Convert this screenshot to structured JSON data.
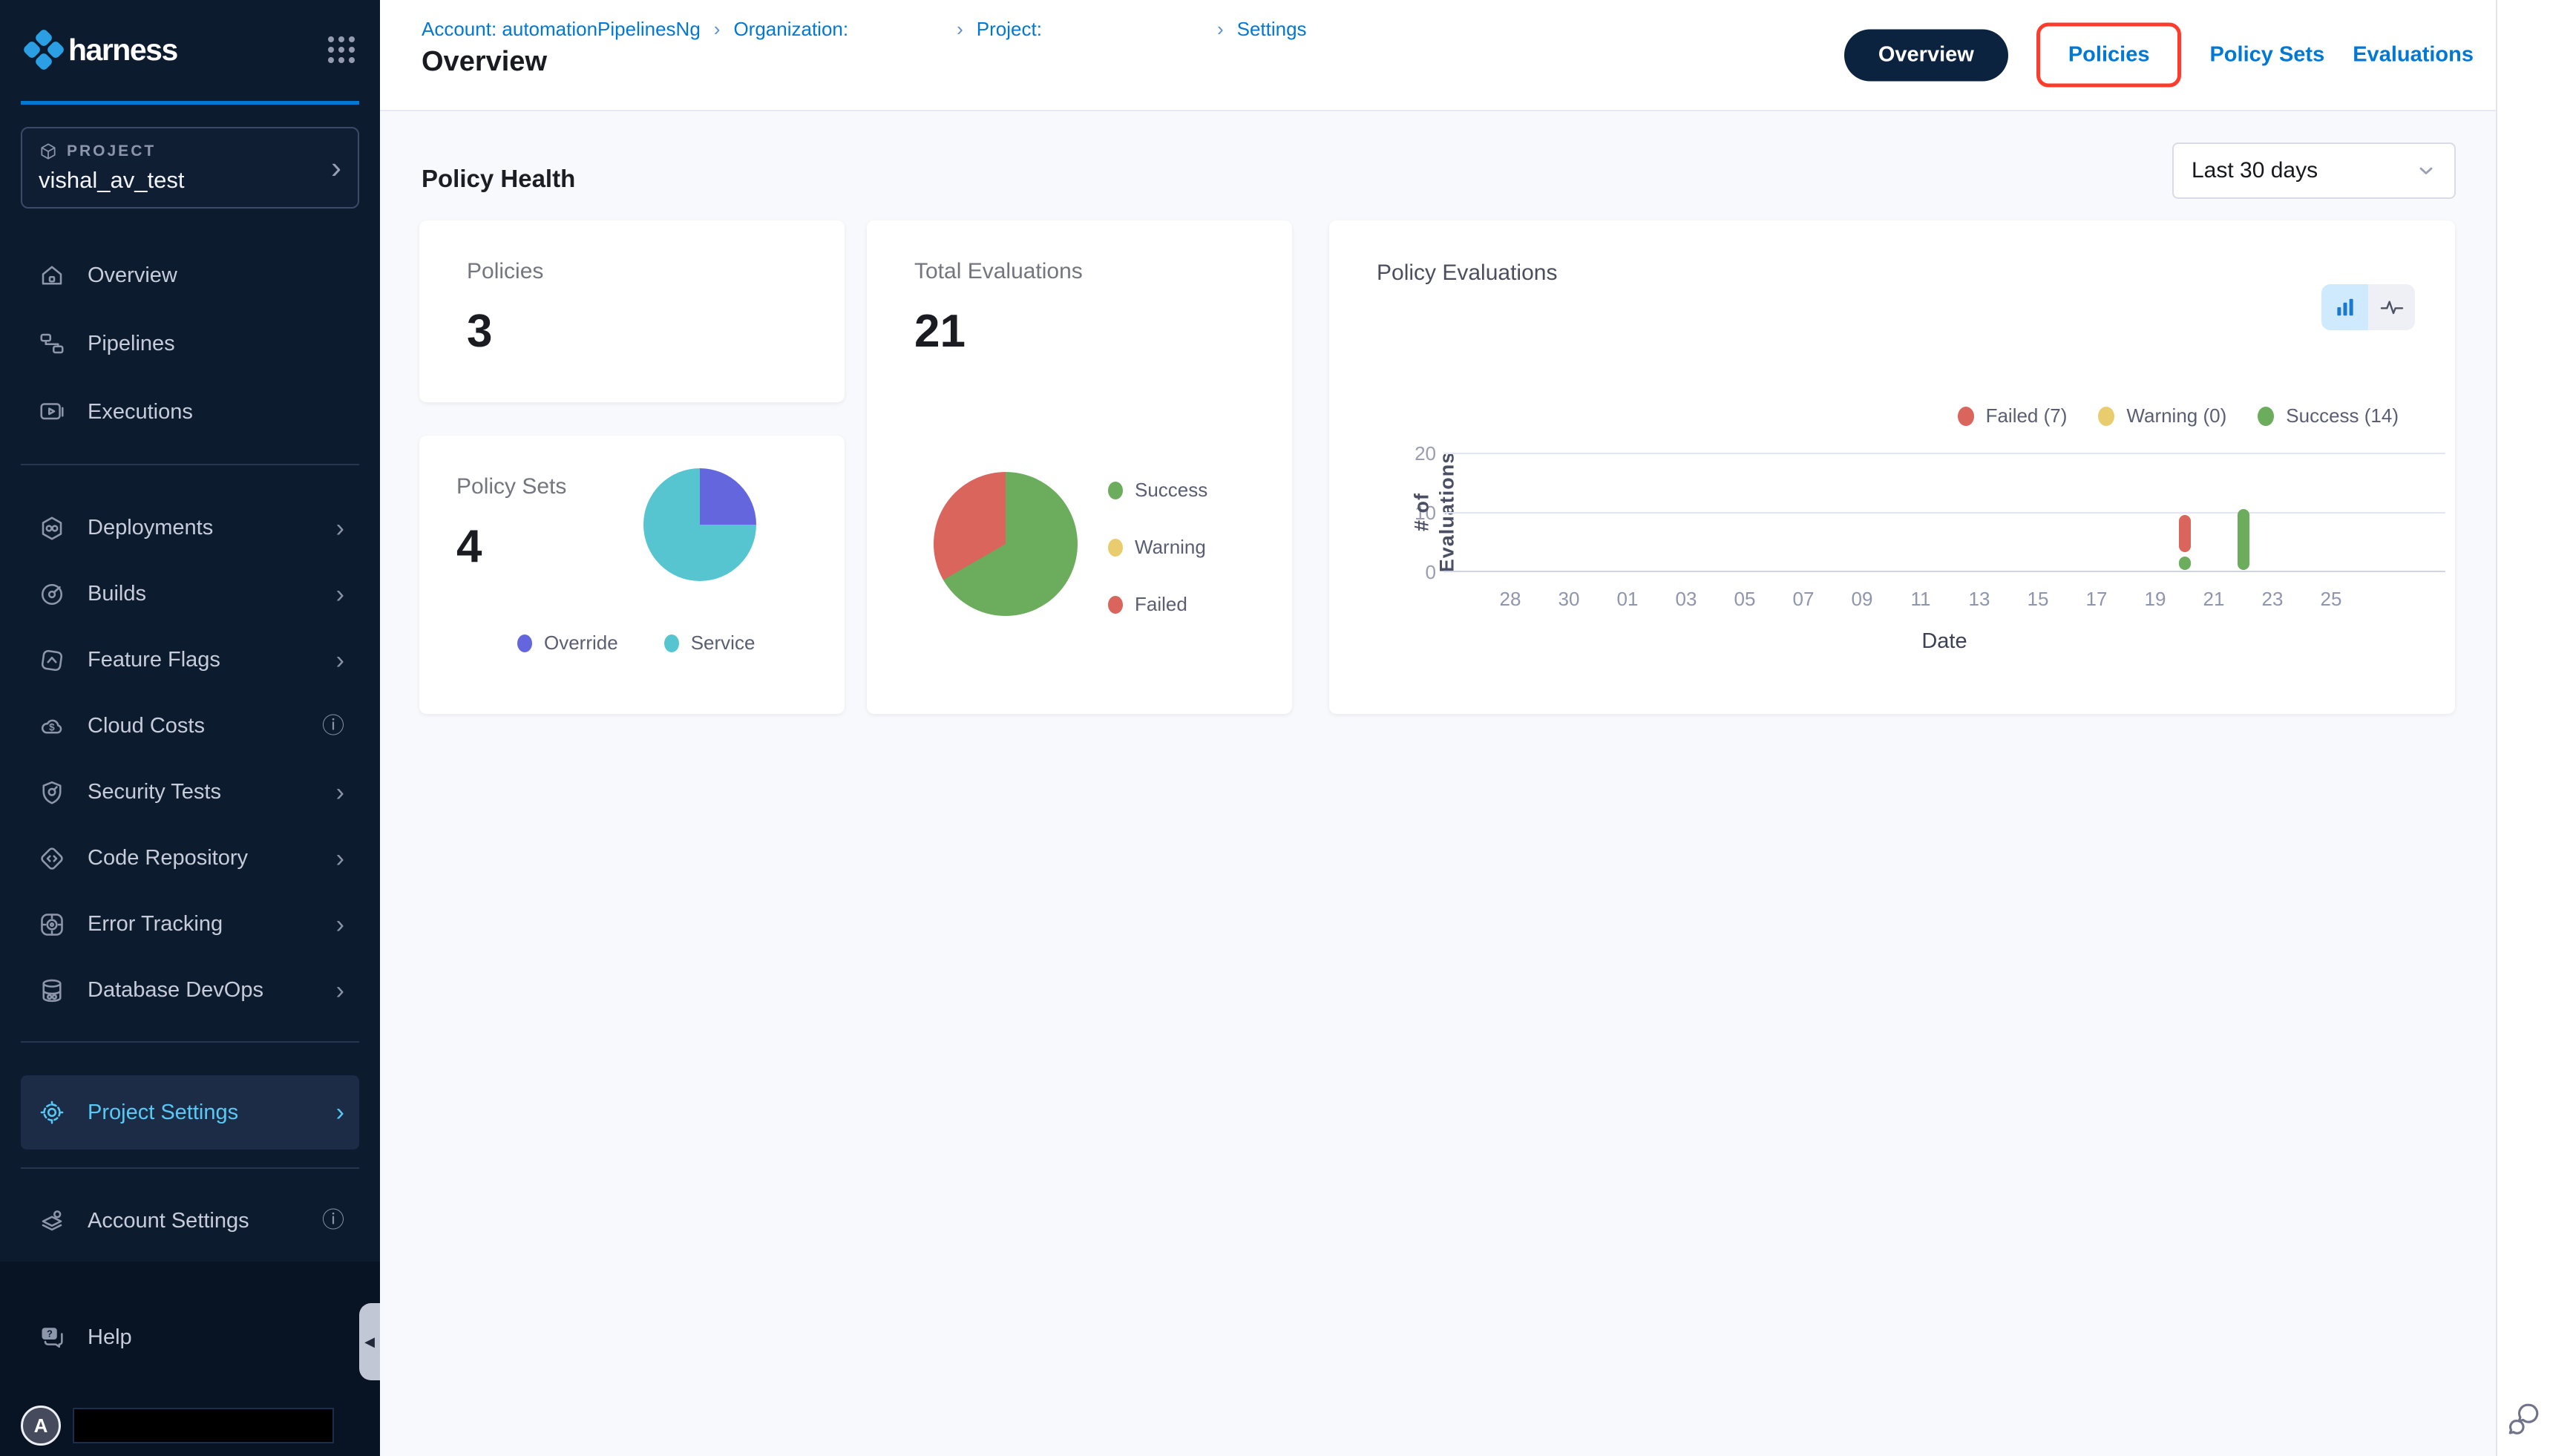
{
  "app": {
    "name": "harness"
  },
  "sidebar": {
    "chevron_glyph": "›",
    "info_glyph": "ⓘ",
    "collapse_glyph": "◀",
    "project_selector": {
      "label": "PROJECT",
      "value": "vishal_av_test"
    },
    "items_top": [
      {
        "label": "Overview"
      },
      {
        "label": "Pipelines"
      },
      {
        "label": "Executions"
      }
    ],
    "items_modules": [
      {
        "label": "Deployments",
        "adorner": "chevron"
      },
      {
        "label": "Builds",
        "adorner": "chevron"
      },
      {
        "label": "Feature Flags",
        "adorner": "chevron"
      },
      {
        "label": "Cloud Costs",
        "adorner": "info"
      },
      {
        "label": "Security Tests",
        "adorner": "chevron"
      },
      {
        "label": "Code Repository",
        "adorner": "chevron"
      },
      {
        "label": "Error Tracking",
        "adorner": "chevron"
      },
      {
        "label": "Database DevOps",
        "adorner": "chevron"
      }
    ],
    "project_settings": {
      "label": "Project Settings"
    },
    "account_settings": {
      "label": "Account Settings"
    },
    "help": {
      "label": "Help"
    },
    "avatar": {
      "initial": "A"
    }
  },
  "header": {
    "breadcrumb": {
      "account": "Account: automationPipelinesNg",
      "organization": "Organization:",
      "project": "Project:",
      "settings": "Settings",
      "separator": "›"
    },
    "title": "Overview",
    "tabs": [
      {
        "label": "Overview",
        "active": true
      },
      {
        "label": "Policies",
        "highlighted": true
      },
      {
        "label": "Policy Sets"
      },
      {
        "label": "Evaluations"
      }
    ]
  },
  "main": {
    "section_title": "Policy Health",
    "date_filter": {
      "value": "Last 30 days"
    },
    "cards": {
      "policies": {
        "title": "Policies",
        "count": "3"
      },
      "total_evaluations": {
        "title": "Total Evaluations",
        "count": "21",
        "legend": [
          {
            "label": "Success",
            "color": "#6cac5d"
          },
          {
            "label": "Warning",
            "color": "#e9cc6d"
          },
          {
            "label": "Failed",
            "color": "#d9655c"
          }
        ]
      },
      "policy_sets": {
        "title": "Policy Sets",
        "count": "4",
        "legend": [
          {
            "label": "Override",
            "color": "#6366dd"
          },
          {
            "label": "Service",
            "color": "#57c5d0"
          }
        ]
      },
      "policy_evaluations": {
        "title": "Policy Evaluations",
        "legend": [
          {
            "label": "Failed (7)",
            "color": "#d9655c"
          },
          {
            "label": "Warning (0)",
            "color": "#e9cc6d"
          },
          {
            "label": "Success (14)",
            "color": "#6cac5d"
          }
        ]
      }
    }
  },
  "colors": {
    "accent_blue": "#0278d5",
    "active_cyan": "#5ac8f5",
    "pill_navy": "#0c2340",
    "annotation_red": "#ff3b2c",
    "sidebar_bg": "#0d1b2e",
    "content_bg": "#f8f9fc"
  },
  "chart_data": [
    {
      "type": "bar",
      "stacked": true,
      "title": "Policy Evaluations",
      "xlabel": "Date",
      "ylabel": "# of Evaluations",
      "ylim": [
        0,
        20
      ],
      "yticks": [
        "20",
        "10",
        "0"
      ],
      "xticks": [
        "28",
        "30",
        "01",
        "03",
        "05",
        "07",
        "09",
        "11",
        "13",
        "15",
        "17",
        "19",
        "21",
        "23",
        "25"
      ],
      "grid": "horizontal",
      "legend_position": "top-right",
      "series": [
        {
          "name": "Failed",
          "total": 7,
          "color": "#d9655c",
          "points": [
            {
              "date": "20",
              "value": 7,
              "base": 3,
              "pos": 11.5
            }
          ]
        },
        {
          "name": "Warning",
          "total": 0,
          "color": "#e9cc6d",
          "points": []
        },
        {
          "name": "Success",
          "total": 14,
          "color": "#6cac5d",
          "points": [
            {
              "date": "20",
              "value": 3,
              "base": 0,
              "pos": 11.5
            },
            {
              "date": "22",
              "value": 11,
              "base": 0,
              "pos": 12.5
            }
          ]
        }
      ]
    },
    {
      "type": "pie",
      "title": "Total Evaluations",
      "total": 21,
      "slices": [
        {
          "label": "Success",
          "value": 14,
          "color": "#6cac5d"
        },
        {
          "label": "Failed",
          "value": 7,
          "color": "#d9655c"
        },
        {
          "label": "Warning",
          "value": 0,
          "color": "#e9cc6d"
        }
      ]
    },
    {
      "type": "pie",
      "title": "Policy Sets",
      "total": 4,
      "slices": [
        {
          "label": "Override",
          "value": 1,
          "color": "#6366dd"
        },
        {
          "label": "Service",
          "value": 3,
          "color": "#57c5d0"
        }
      ]
    }
  ]
}
